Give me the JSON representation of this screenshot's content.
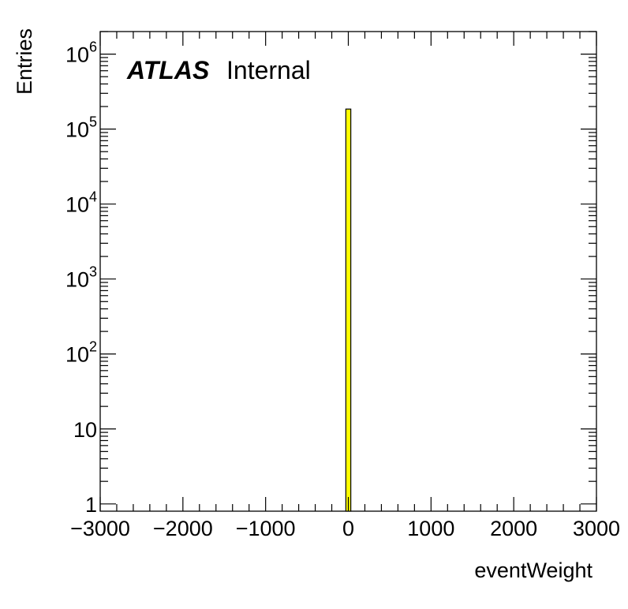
{
  "chart_data": {
    "type": "bar",
    "xlabel": "eventWeight",
    "ylabel": "Entries",
    "xlim": [
      -3000,
      3000
    ],
    "ylim": [
      0.8,
      2000000
    ],
    "y_scale": "log",
    "x_ticks": [
      -3000,
      -2000,
      -1000,
      0,
      1000,
      2000,
      3000
    ],
    "x_tick_labels": [
      "−3000",
      "−2000",
      "−1000",
      "0",
      "1000",
      "2000",
      "3000"
    ],
    "y_ticks": [
      {
        "value": 1,
        "base": "1",
        "exp": ""
      },
      {
        "value": 10,
        "base": "10",
        "exp": ""
      },
      {
        "value": 100,
        "base": "10",
        "exp": "2"
      },
      {
        "value": 1000,
        "base": "10",
        "exp": "3"
      },
      {
        "value": 10000,
        "base": "10",
        "exp": "4"
      },
      {
        "value": 100000,
        "base": "10",
        "exp": "5"
      },
      {
        "value": 1000000,
        "base": "10",
        "exp": "6"
      }
    ],
    "bins": [
      {
        "x_low": -30,
        "x_high": 30,
        "value": 185000
      }
    ],
    "bar_color": "#ffff00",
    "grid": false,
    "annotation": {
      "bold": "ATLAS",
      "normal": "Internal"
    }
  }
}
